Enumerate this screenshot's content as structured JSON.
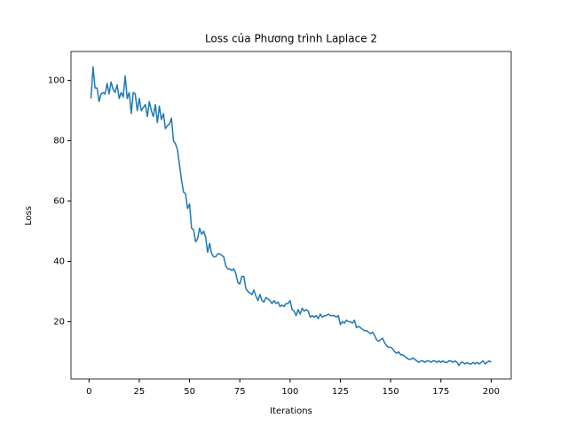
{
  "chart_data": {
    "type": "line",
    "title": "Loss của Phương trình Laplace 2",
    "xlabel": "Iterations",
    "ylabel": "Loss",
    "x": [
      1,
      2,
      3,
      4,
      5,
      6,
      7,
      8,
      9,
      10,
      11,
      12,
      13,
      14,
      15,
      16,
      17,
      18,
      19,
      20,
      21,
      22,
      23,
      24,
      25,
      26,
      27,
      28,
      29,
      30,
      31,
      32,
      33,
      34,
      35,
      36,
      37,
      38,
      39,
      40,
      41,
      42,
      43,
      44,
      45,
      46,
      47,
      48,
      49,
      50,
      51,
      52,
      53,
      54,
      55,
      56,
      57,
      58,
      59,
      60,
      61,
      62,
      63,
      64,
      65,
      66,
      67,
      68,
      69,
      70,
      71,
      72,
      73,
      74,
      75,
      76,
      77,
      78,
      79,
      80,
      81,
      82,
      83,
      84,
      85,
      86,
      87,
      88,
      89,
      90,
      91,
      92,
      93,
      94,
      95,
      96,
      97,
      98,
      99,
      100,
      101,
      102,
      103,
      104,
      105,
      106,
      107,
      108,
      109,
      110,
      111,
      112,
      113,
      114,
      115,
      116,
      117,
      118,
      119,
      120,
      121,
      122,
      123,
      124,
      125,
      126,
      127,
      128,
      129,
      130,
      131,
      132,
      133,
      134,
      135,
      136,
      137,
      138,
      139,
      140,
      141,
      142,
      143,
      144,
      145,
      146,
      147,
      148,
      149,
      150,
      151,
      152,
      153,
      154,
      155,
      156,
      157,
      158,
      159,
      160,
      161,
      162,
      163,
      164,
      165,
      166,
      167,
      168,
      169,
      170,
      171,
      172,
      173,
      174,
      175,
      176,
      177,
      178,
      179,
      180,
      181,
      182,
      183,
      184,
      185,
      186,
      187,
      188,
      189,
      190,
      191,
      192,
      193,
      194,
      195,
      196,
      197,
      198,
      199,
      200
    ],
    "series": [
      {
        "name": "Loss",
        "color": "#1f77b4",
        "values": [
          94,
          104.5,
          97.5,
          97.5,
          93,
          95.5,
          96,
          95.5,
          99,
          95.5,
          99.5,
          97,
          96,
          98.5,
          94,
          96,
          94.5,
          101.5,
          94,
          96,
          89,
          96,
          95.5,
          90,
          94,
          90,
          91,
          92,
          88,
          93,
          90,
          88,
          92,
          86,
          91.5,
          87,
          89,
          84,
          85,
          85.5,
          87.5,
          80,
          79,
          77,
          72,
          67,
          63,
          62.5,
          57.5,
          59,
          51,
          50.5,
          46.5,
          47.5,
          51,
          49,
          50,
          48,
          43,
          46,
          42.5,
          41.5,
          41.5,
          42.5,
          42.5,
          42,
          41.5,
          38.5,
          37.5,
          37.5,
          37,
          37.5,
          36,
          33,
          32.5,
          35,
          35,
          31,
          30,
          29.5,
          29,
          30.5,
          28.5,
          27,
          29,
          27,
          26.5,
          28,
          27.5,
          27,
          26,
          27,
          26,
          26.5,
          25,
          25.5,
          25,
          26,
          26,
          27,
          24,
          23.5,
          22,
          24,
          22.5,
          24.5,
          23.5,
          24,
          23.5,
          21.5,
          22,
          21.5,
          22,
          21,
          22.5,
          21.5,
          22,
          22,
          22.5,
          22,
          22,
          22,
          21.5,
          22,
          19,
          20,
          19.5,
          20.5,
          20,
          20,
          19.5,
          20.5,
          18,
          18.5,
          18,
          17.5,
          17,
          17,
          16.5,
          16,
          16.5,
          15.5,
          14,
          13.5,
          14,
          14.5,
          13,
          12,
          11.5,
          11.5,
          11,
          10,
          9.5,
          10,
          9,
          9,
          8.5,
          8,
          7.5,
          7.5,
          8,
          7.5,
          7,
          6.5,
          7,
          7,
          6.5,
          7,
          7,
          6.5,
          7,
          7,
          6.5,
          7,
          6.5,
          7,
          6.5,
          6.5,
          7,
          7,
          6.5,
          7,
          6.5,
          5.5,
          6.5,
          6.5,
          6,
          6.5,
          6,
          6,
          6.5,
          6,
          6.5,
          6,
          6.5,
          7,
          6,
          6.5,
          7,
          6.5
        ]
      }
    ],
    "xlim": [
      -8.95,
      209.95
    ],
    "ylim": [
      1.0,
      109.6
    ],
    "xticks": [
      0,
      25,
      50,
      75,
      100,
      125,
      150,
      175,
      200
    ],
    "yticks": [
      20,
      40,
      60,
      80,
      100
    ]
  }
}
